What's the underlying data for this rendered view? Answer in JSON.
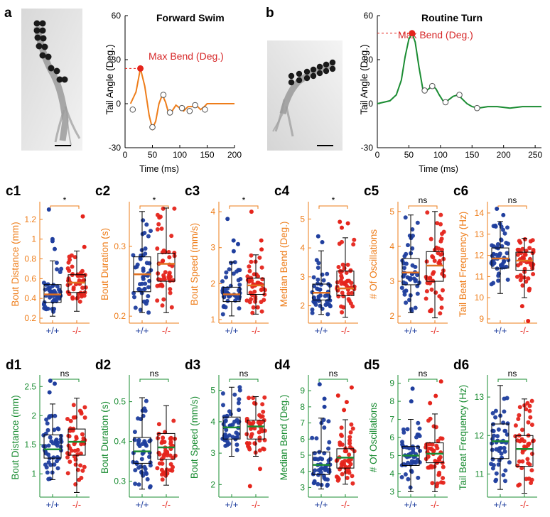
{
  "colors": {
    "orange": "#ee7d1a",
    "green": "#1a8c32",
    "blue": "#1f3e9e",
    "red": "#e5241b",
    "median_orange": "#e07020",
    "median_green": "#1a8c32",
    "black": "#000000"
  },
  "panels": {
    "a": {
      "letter": "a",
      "image_name": "fish-photo-forward",
      "chart": {
        "title": "Forward Swim",
        "ylabel": "Tail Angle (Deg.)",
        "xlabel": "Time (ms)",
        "annotation": "Max Bend (Deg.)",
        "xticks": [
          "0",
          "50",
          "100",
          "150",
          "200"
        ],
        "yticks": [
          "60",
          "30",
          "0",
          "-30"
        ]
      }
    },
    "b": {
      "letter": "b",
      "image_name": "fish-photo-turn",
      "chart": {
        "title": "Routine Turn",
        "ylabel": "Tail Angle (Deg.)",
        "xlabel": "Time (ms)",
        "annotation": "Max Bend (Deg.)",
        "xticks": [
          "0",
          "50",
          "100",
          "150",
          "200",
          "250"
        ],
        "yticks": [
          "60",
          "30",
          "0",
          "-30"
        ]
      }
    }
  },
  "chart_data": [
    {
      "id": "a",
      "type": "line",
      "title": "Forward Swim",
      "xlabel": "Time (ms)",
      "ylabel": "Tail Angle (Deg.)",
      "xlim": [
        0,
        200
      ],
      "ylim": [
        -30,
        60
      ],
      "series": [
        {
          "x": [
            10,
            20,
            28,
            36,
            44,
            50,
            56,
            62,
            68,
            74,
            80,
            86,
            93,
            100,
            107,
            115,
            122,
            130,
            138,
            145,
            150,
            160
          ],
          "y": [
            0,
            8,
            24,
            12,
            -8,
            -17,
            -12,
            0,
            6,
            1,
            -7,
            -5,
            -1,
            -3,
            -5,
            -2,
            -2,
            -1,
            -4,
            -2,
            0,
            0
          ]
        }
      ],
      "max_bend_point": [
        28,
        24
      ],
      "circle_markers": [
        [
          14,
          -4
        ],
        [
          50,
          -16
        ],
        [
          70,
          6
        ],
        [
          82,
          -6
        ],
        [
          104,
          -3
        ],
        [
          118,
          -5
        ],
        [
          128,
          -1
        ],
        [
          146,
          -4
        ]
      ]
    },
    {
      "id": "b",
      "type": "line",
      "title": "Routine Turn",
      "xlabel": "Time (ms)",
      "ylabel": "Tail Angle (Deg.)",
      "xlim": [
        0,
        260
      ],
      "ylim": [
        -30,
        60
      ],
      "series": [
        {
          "x": [
            0,
            20,
            30,
            38,
            44,
            50,
            55,
            60,
            66,
            72,
            78,
            84,
            88,
            93,
            98,
            104,
            108,
            114,
            120,
            128,
            135,
            142,
            150,
            160,
            175,
            190,
            210,
            230,
            250,
            260
          ],
          "y": [
            0,
            2,
            6,
            16,
            32,
            44,
            48,
            42,
            25,
            10,
            9,
            11,
            12,
            10,
            6,
            2,
            1,
            3,
            5,
            6,
            3,
            0,
            -2,
            -3,
            -2,
            -2,
            -3,
            -2,
            -2,
            -2
          ]
        }
      ],
      "max_bend_point": [
        55,
        48
      ],
      "circle_markers": [
        [
          75,
          9
        ],
        [
          87,
          12
        ],
        [
          108,
          1
        ],
        [
          130,
          6
        ],
        [
          158,
          -3
        ]
      ]
    },
    {
      "id": "c1",
      "label": "c1",
      "type": "scatter",
      "ylabel": "Bout Distance (mm)",
      "categories": [
        "+/+",
        "-/-"
      ],
      "ylim": [
        0.15,
        1.35
      ],
      "yticks": [
        "0.2",
        "0.4",
        "0.6",
        "0.8",
        "1",
        "1.2"
      ],
      "ytick_values": [
        0.2,
        0.4,
        0.6,
        0.8,
        1.0,
        1.2
      ],
      "boxes": [
        {
          "q1": 0.36,
          "median": 0.44,
          "q3": 0.54,
          "lo": 0.22,
          "hi": 0.78
        },
        {
          "q1": 0.46,
          "median": 0.56,
          "q3": 0.64,
          "lo": 0.27,
          "hi": 0.88
        }
      ],
      "outliers": [
        [
          1.3,
          1.0,
          0.98,
          0.9
        ],
        [
          1.23,
          0.92
        ]
      ],
      "signif": "*",
      "theme": "orange",
      "seed": 11
    },
    {
      "id": "c2",
      "label": "c2",
      "type": "scatter",
      "ylabel": "Bout Duration (s)",
      "categories": [
        "+/+",
        "-/-"
      ],
      "ylim": [
        0.19,
        0.36
      ],
      "yticks": [
        "0.2",
        "0.3"
      ],
      "ytick_values": [
        0.2,
        0.3
      ],
      "boxes": [
        {
          "q1": 0.235,
          "median": 0.26,
          "q3": 0.285,
          "lo": 0.205,
          "hi": 0.35
        },
        {
          "q1": 0.25,
          "median": 0.275,
          "q3": 0.29,
          "lo": 0.205,
          "hi": 0.355
        }
      ],
      "outliers": [
        [],
        []
      ],
      "signif": "*",
      "theme": "orange",
      "seed": 23
    },
    {
      "id": "c3",
      "label": "c3",
      "type": "scatter",
      "ylabel": "Bout Speed (mm/s)",
      "categories": [
        "+/+",
        "-/-"
      ],
      "ylim": [
        0.9,
        4.2
      ],
      "yticks": [
        "1",
        "2",
        "3",
        "4"
      ],
      "ytick_values": [
        1,
        2,
        3,
        4
      ],
      "boxes": [
        {
          "q1": 1.5,
          "median": 1.7,
          "q3": 1.9,
          "lo": 1.1,
          "hi": 2.6
        },
        {
          "q1": 1.7,
          "median": 1.95,
          "q3": 2.15,
          "lo": 1.15,
          "hi": 2.8
        }
      ],
      "outliers": [
        [
          3.8,
          3.2,
          3.1,
          2.9
        ],
        [
          4.0,
          3.2,
          2.95
        ]
      ],
      "signif": "*",
      "theme": "orange",
      "seed": 37
    },
    {
      "id": "c4",
      "label": "c4",
      "type": "scatter",
      "ylabel": "Median Bend (Deg.)",
      "categories": [
        "+/+",
        "-/-"
      ],
      "ylim": [
        1.4,
        5.5
      ],
      "yticks": [
        "2",
        "3",
        "4",
        "5"
      ],
      "ytick_values": [
        2,
        3,
        4,
        5
      ],
      "boxes": [
        {
          "q1": 2.2,
          "median": 2.45,
          "q3": 2.75,
          "lo": 1.7,
          "hi": 3.9
        },
        {
          "q1": 2.35,
          "median": 2.6,
          "q3": 3.2,
          "lo": 1.6,
          "hi": 4.35
        }
      ],
      "outliers": [
        [
          4.4,
          4.2
        ],
        [
          4.9,
          4.85,
          4.7
        ]
      ],
      "signif": "*",
      "theme": "orange",
      "seed": 41
    },
    {
      "id": "c5",
      "label": "c5",
      "type": "scatter",
      "ylabel": "# Of Oscillations",
      "categories": [
        "+/+",
        "-/-"
      ],
      "ylim": [
        1.8,
        5.2
      ],
      "yticks": [
        "2",
        "3",
        "4",
        "5"
      ],
      "ytick_values": [
        2,
        3,
        4,
        5
      ],
      "boxes": [
        {
          "q1": 2.9,
          "median": 3.25,
          "q3": 3.65,
          "lo": 2.1,
          "hi": 4.9
        },
        {
          "q1": 3.0,
          "median": 3.45,
          "q3": 3.85,
          "lo": 1.95,
          "hi": 5.0
        }
      ],
      "outliers": [
        [],
        []
      ],
      "signif": "ns",
      "theme": "orange",
      "seed": 53
    },
    {
      "id": "c6",
      "label": "c6",
      "type": "scatter",
      "ylabel": "Tail Beat Frequency (Hz)",
      "categories": [
        "+/+",
        "-/-"
      ],
      "ylim": [
        8.8,
        14.4
      ],
      "yticks": [
        "9",
        "10",
        "11",
        "12",
        "13",
        "14"
      ],
      "ytick_values": [
        9,
        10,
        11,
        12,
        13,
        14
      ],
      "boxes": [
        {
          "q1": 11.4,
          "median": 11.85,
          "q3": 12.35,
          "lo": 10.2,
          "hi": 13.6
        },
        {
          "q1": 11.3,
          "median": 11.75,
          "q3": 12.15,
          "lo": 10.0,
          "hi": 12.8
        }
      ],
      "outliers": [
        [
          14.2,
          13.9
        ],
        [
          9.6,
          8.9
        ]
      ],
      "signif": "ns",
      "theme": "orange",
      "seed": 67
    },
    {
      "id": "d1",
      "label": "d1",
      "type": "scatter",
      "ylabel": "Bout Distance (mm)",
      "categories": [
        "+/+",
        "-/-"
      ],
      "ylim": [
        0.6,
        2.65
      ],
      "yticks": [
        "1",
        "1.5",
        "2",
        "2.5"
      ],
      "ytick_values": [
        1,
        1.5,
        2,
        2.5
      ],
      "boxes": [
        {
          "q1": 1.27,
          "median": 1.42,
          "q3": 1.67,
          "lo": 0.9,
          "hi": 2.2
        },
        {
          "q1": 1.32,
          "median": 1.55,
          "q3": 1.77,
          "lo": 0.68,
          "hi": 2.3
        }
      ],
      "outliers": [
        [
          2.6,
          2.55,
          2.4
        ],
        []
      ],
      "signif": "ns",
      "theme": "green",
      "seed": 71
    },
    {
      "id": "d2",
      "label": "d2",
      "type": "scatter",
      "ylabel": "Bout Duration (s)",
      "categories": [
        "+/+",
        "-/-"
      ],
      "ylim": [
        0.26,
        0.56
      ],
      "yticks": [
        "0.3",
        "0.4",
        "0.5"
      ],
      "ytick_values": [
        0.3,
        0.4,
        0.5
      ],
      "boxes": [
        {
          "q1": 0.345,
          "median": 0.375,
          "q3": 0.41,
          "lo": 0.28,
          "hi": 0.51
        },
        {
          "q1": 0.355,
          "median": 0.385,
          "q3": 0.42,
          "lo": 0.29,
          "hi": 0.49
        }
      ],
      "outliers": [
        [],
        []
      ],
      "signif": "ns",
      "theme": "green",
      "seed": 83
    },
    {
      "id": "d3",
      "label": "d3",
      "type": "scatter",
      "ylabel": "Bout Speed (mm/s)",
      "categories": [
        "+/+",
        "-/-"
      ],
      "ylim": [
        1.6,
        5.4
      ],
      "yticks": [
        "2",
        "3",
        "4",
        "5"
      ],
      "ytick_values": [
        2,
        3,
        4,
        5
      ],
      "boxes": [
        {
          "q1": 3.45,
          "median": 3.82,
          "q3": 4.15,
          "lo": 2.9,
          "hi": 5.1
        },
        {
          "q1": 3.45,
          "median": 3.85,
          "q3": 4.05,
          "lo": 2.9,
          "hi": 4.8
        }
      ],
      "outliers": [
        [],
        [
          2.5,
          1.95
        ]
      ],
      "signif": "ns",
      "theme": "green",
      "seed": 97
    },
    {
      "id": "d4",
      "label": "d4",
      "type": "scatter",
      "ylabel": "Median Bend (Deg.)",
      "categories": [
        "+/+",
        "-/-"
      ],
      "ylim": [
        2.4,
        9.8
      ],
      "yticks": [
        "3",
        "4",
        "5",
        "6",
        "7",
        "8",
        "9"
      ],
      "ytick_values": [
        3,
        4,
        5,
        6,
        7,
        8,
        9
      ],
      "boxes": [
        {
          "q1": 3.8,
          "median": 4.4,
          "q3": 5.2,
          "lo": 2.9,
          "hi": 7.3
        },
        {
          "q1": 4.2,
          "median": 4.85,
          "q3": 5.4,
          "lo": 3.2,
          "hi": 7.2
        }
      ],
      "outliers": [
        [
          9.4,
          8.5,
          8.0
        ],
        [
          9.2,
          8.7,
          8.3,
          7.8
        ]
      ],
      "signif": "ns",
      "theme": "green",
      "seed": 101
    },
    {
      "id": "d5",
      "label": "d5",
      "type": "scatter",
      "ylabel": "# Of Oscillations",
      "categories": [
        "+/+",
        "-/-"
      ],
      "ylim": [
        2.7,
        9.3
      ],
      "yticks": [
        "3",
        "4",
        "5",
        "6",
        "7",
        "8",
        "9"
      ],
      "ytick_values": [
        3,
        4,
        5,
        6,
        7,
        8,
        9
      ],
      "boxes": [
        {
          "q1": 4.45,
          "median": 5.0,
          "q3": 5.5,
          "lo": 3.0,
          "hi": 7.0
        },
        {
          "q1": 4.6,
          "median": 5.1,
          "q3": 5.7,
          "lo": 3.0,
          "hi": 7.3
        }
      ],
      "outliers": [
        [
          8.7,
          8.0
        ],
        [
          9.1,
          8.3,
          7.9
        ]
      ],
      "signif": "ns",
      "theme": "green",
      "seed": 113
    },
    {
      "id": "d6",
      "label": "d6",
      "type": "scatter",
      "ylabel": "Tail Beat Frequency (Hz)",
      "categories": [
        "+/+",
        "-/-"
      ],
      "ylim": [
        10.4,
        13.5
      ],
      "yticks": [
        "11",
        "12",
        "13"
      ],
      "ytick_values": [
        11,
        12,
        13
      ],
      "boxes": [
        {
          "q1": 11.4,
          "median": 11.85,
          "q3": 12.3,
          "lo": 10.6,
          "hi": 13.3
        },
        {
          "q1": 11.2,
          "median": 11.65,
          "q3": 12.0,
          "lo": 10.5,
          "hi": 12.95
        }
      ],
      "outliers": [
        [],
        []
      ],
      "signif": "ns",
      "theme": "green",
      "seed": 127
    }
  ]
}
